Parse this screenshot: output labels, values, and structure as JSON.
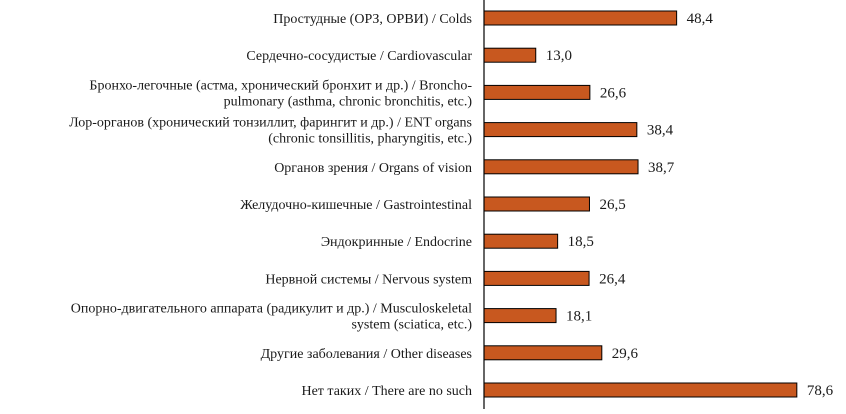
{
  "chart_data": {
    "type": "bar",
    "orientation": "horizontal",
    "categories": [
      [
        "Простудные (ОРЗ, ОРВИ) / Colds"
      ],
      [
        "Сердечно-сосудистые / Cardiovascular"
      ],
      [
        "Бронхо-легочные (астма, хронический бронхит и др.) / Broncho-",
        "pulmonary (asthma, chronic bronchitis, etc.)"
      ],
      [
        "Лор-органов (хронический тонзиллит, фарингит и др.) / ENT organs",
        "(chronic tonsillitis, pharyngitis, etc.)"
      ],
      [
        "Органов зрения / Organs of vision"
      ],
      [
        "Желудочно-кишечные / Gastrointestinal"
      ],
      [
        "Эндокринные / Endocrine"
      ],
      [
        "Нервной системы  / Nervous system"
      ],
      [
        "Опорно-двигательного аппарата (радикулит и др.) / Musculoskeletal",
        "system (sciatica, etc.)"
      ],
      [
        "Другие заболевания  / Other diseases"
      ],
      [
        "Нет таких / There are no such"
      ]
    ],
    "values": [
      48.4,
      13.0,
      26.6,
      38.4,
      38.7,
      26.5,
      18.5,
      26.4,
      18.1,
      29.6,
      78.6
    ],
    "value_labels": [
      "48,4",
      "13,0",
      "26,6",
      "38,4",
      "38,7",
      "26,5",
      "18,5",
      "26,4",
      "18,1",
      "29,6",
      "78,6"
    ],
    "bar_color": "#c8581f",
    "bar_stroke": "#000000",
    "title": "",
    "xlabel": "",
    "ylabel": "",
    "xlim": [
      0,
      100
    ],
    "grid": false,
    "legend": "none"
  }
}
